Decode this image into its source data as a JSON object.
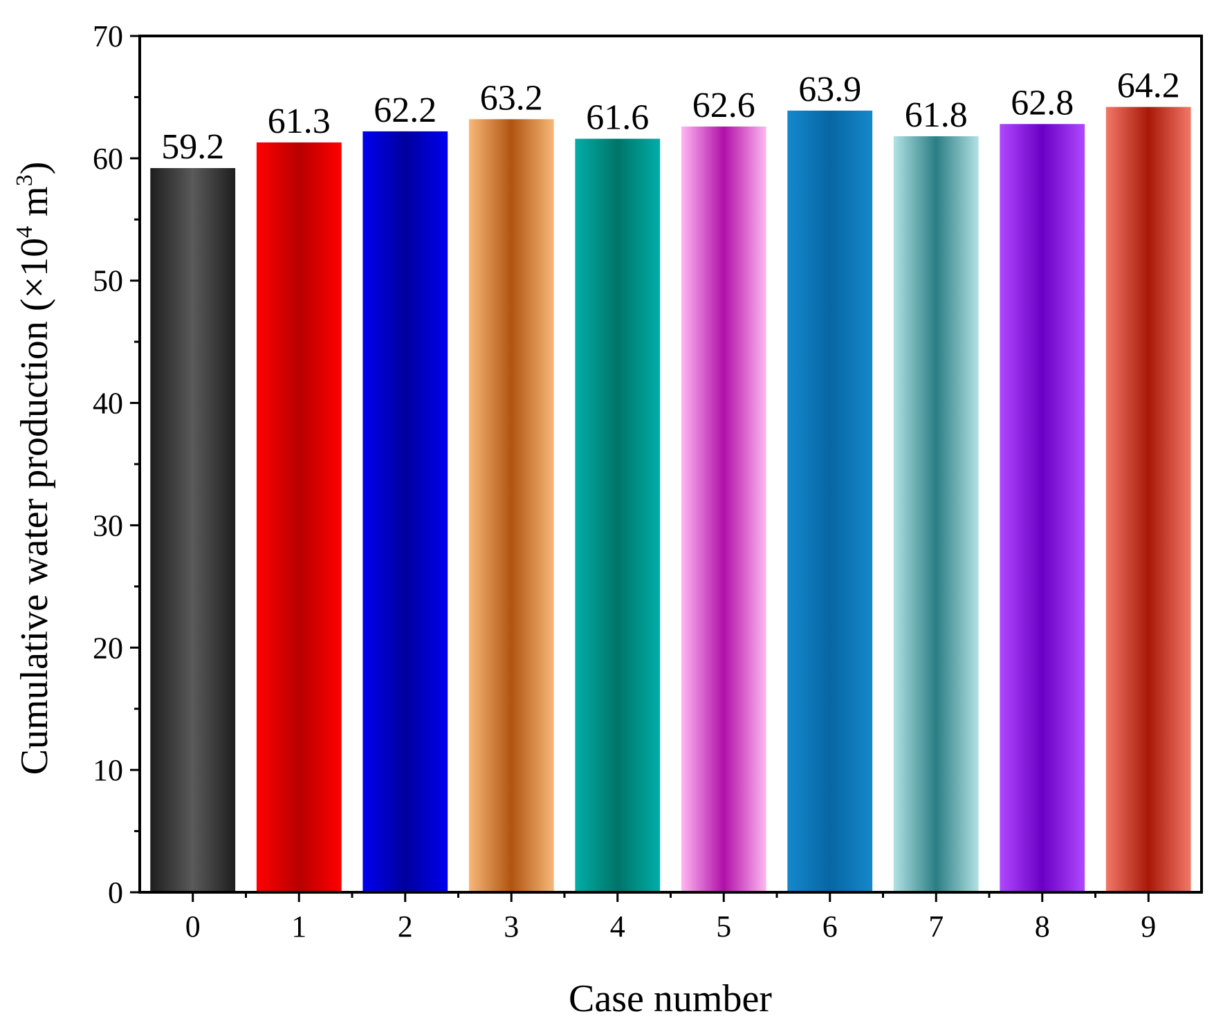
{
  "chart_data": {
    "type": "bar",
    "categories": [
      "0",
      "1",
      "2",
      "3",
      "4",
      "5",
      "6",
      "7",
      "8",
      "9"
    ],
    "values": [
      59.2,
      61.3,
      62.2,
      63.2,
      61.6,
      62.6,
      63.9,
      61.8,
      62.8,
      64.2
    ],
    "data_labels": [
      "59.2",
      "61.3",
      "62.2",
      "63.2",
      "61.6",
      "62.6",
      "63.9",
      "61.8",
      "62.8",
      "64.2"
    ],
    "title": "",
    "xlabel": "Case number",
    "ylabel": {
      "main": "Cumulative water production (×10",
      "exp1": "4",
      "unit": " m",
      "exp2": "3",
      "close": ")"
    },
    "ylim": [
      0,
      70
    ],
    "yticks": [
      0,
      10,
      20,
      30,
      40,
      50,
      60,
      70
    ],
    "ytick_labels": [
      "0",
      "10",
      "20",
      "30",
      "40",
      "50",
      "60",
      "70"
    ],
    "grid": false,
    "legend": "none",
    "bar_colors": [
      {
        "edge": "#1e1e1e",
        "mid": "#5a5a5a"
      },
      {
        "edge": "#ff0000",
        "mid": "#b80000"
      },
      {
        "edge": "#0000ee",
        "mid": "#00009e"
      },
      {
        "edge": "#f8b878",
        "mid": "#b05410"
      },
      {
        "edge": "#00aea8",
        "mid": "#007468"
      },
      {
        "edge": "#ffb8f2",
        "mid": "#b010a8"
      },
      {
        "edge": "#1488cc",
        "mid": "#0866a4"
      },
      {
        "edge": "#b2e2e4",
        "mid": "#2a7e84"
      },
      {
        "edge": "#b048ff",
        "mid": "#6a00c4"
      },
      {
        "edge": "#f27868",
        "mid": "#a81808"
      }
    ]
  }
}
